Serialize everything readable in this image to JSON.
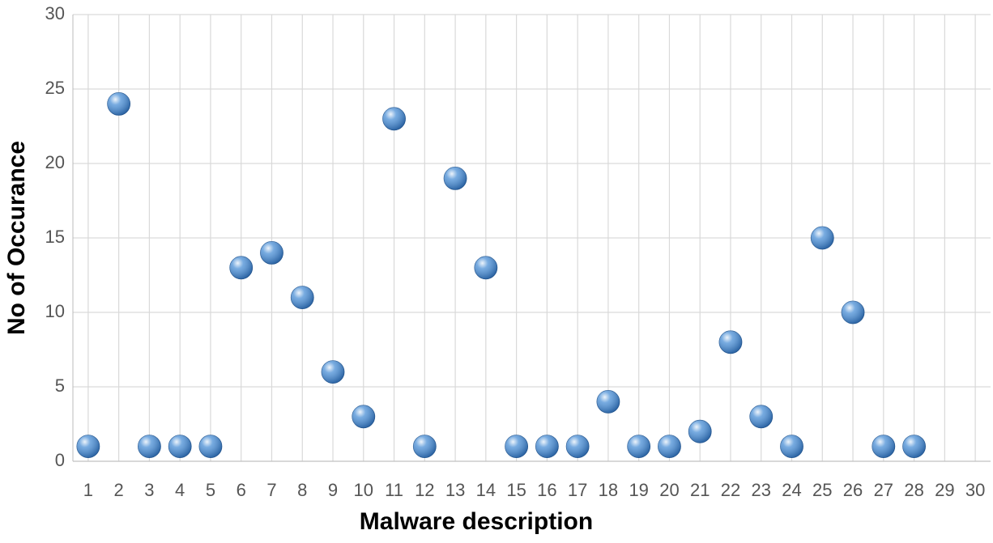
{
  "chart_data": {
    "type": "scatter",
    "x_label": "Malware description",
    "y_label": "No of Occurance",
    "series": [
      {
        "color": "#4a8fd6",
        "x": [
          1,
          2,
          3,
          4,
          5,
          6,
          7,
          8,
          9,
          10,
          11,
          12,
          13,
          14,
          15,
          16,
          17,
          18,
          19,
          20,
          21,
          22,
          23,
          24,
          25,
          26,
          27,
          28
        ],
        "values": [
          1,
          24,
          1,
          1,
          1,
          13,
          14,
          11,
          6,
          3,
          23,
          1,
          19,
          13,
          1,
          1,
          1,
          4,
          1,
          1,
          2,
          8,
          3,
          1,
          15,
          10,
          1,
          1
        ]
      }
    ],
    "xlim": [
      0.5,
      30.5
    ],
    "xticks": [
      1,
      2,
      3,
      4,
      5,
      6,
      7,
      8,
      9,
      10,
      11,
      12,
      13,
      14,
      15,
      16,
      17,
      18,
      19,
      20,
      21,
      22,
      23,
      24,
      25,
      26,
      27,
      28,
      29,
      30
    ],
    "ylim": [
      0,
      30
    ],
    "yticks": [
      0,
      5,
      10,
      15,
      20,
      25,
      30
    ],
    "grid": true
  }
}
